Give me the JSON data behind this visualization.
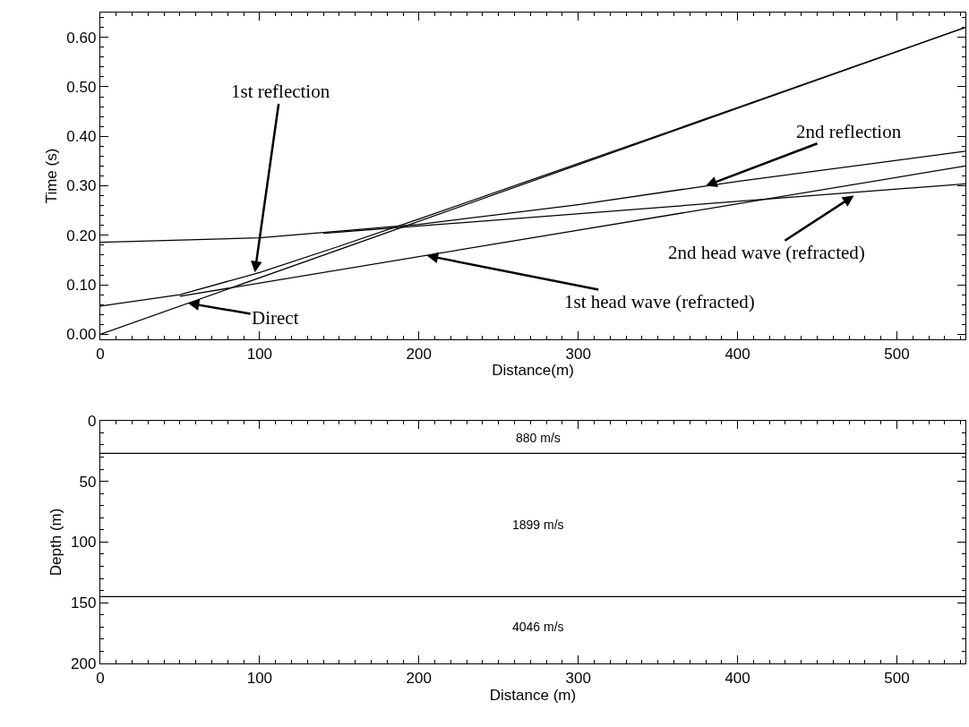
{
  "chart_data": [
    {
      "type": "line",
      "xlabel": "Distance(m)",
      "ylabel": "Time (s)",
      "xlim": [
        0,
        543
      ],
      "ylim": [
        -0.01,
        0.65
      ],
      "xticks": [
        0,
        100,
        200,
        300,
        400,
        500
      ],
      "yticks": [
        {
          "value": 0,
          "label": "0.00"
        },
        {
          "value": 0.1,
          "label": "0.10"
        },
        {
          "value": 0.2,
          "label": "0.20"
        },
        {
          "value": 0.3,
          "label": "0.30"
        },
        {
          "value": 0.4,
          "label": "0.40"
        },
        {
          "value": 0.5,
          "label": "0.50"
        },
        {
          "value": 0.6,
          "label": "0.60"
        }
      ],
      "line_style": "solid",
      "series": [
        {
          "color": "#000000",
          "x": [
            0,
            543
          ],
          "values": [
            0,
            0.62
          ]
        },
        {
          "color": "#000000",
          "x": [
            0,
            50,
            100,
            150,
            200,
            300,
            400,
            543
          ],
          "values": [
            0.057,
            0.08,
            0.125,
            0.178,
            0.233,
            0.345,
            0.458,
            0.62
          ]
        },
        {
          "color": "#000000",
          "x": [
            50,
            543
          ],
          "values": [
            0.077,
            0.34
          ]
        },
        {
          "color": "#000000",
          "x": [
            0,
            100,
            200,
            300,
            400,
            543
          ],
          "values": [
            0.186,
            0.195,
            0.222,
            0.262,
            0.309,
            0.37
          ]
        },
        {
          "color": "#000000",
          "x": [
            140,
            543
          ],
          "values": [
            0.204,
            0.304
          ]
        }
      ],
      "annotations": [
        {
          "text": "1st reflection",
          "x": 97,
          "y": 0.125
        },
        {
          "text": "Direct",
          "x": 55,
          "y": 0.063
        },
        {
          "text": "1st head wave (refracted)",
          "x": 205,
          "y": 0.159
        },
        {
          "text": "2nd reflection",
          "x": 380,
          "y": 0.3
        },
        {
          "text": "2nd head wave (refracted)",
          "x": 473,
          "y": 0.28
        }
      ]
    },
    {
      "type": "line",
      "xlabel": "Distance (m)",
      "ylabel": "Depth (m)",
      "xlim": [
        0,
        543
      ],
      "ylim": [
        200,
        0
      ],
      "xticks": [
        0,
        100,
        200,
        300,
        400,
        500
      ],
      "yticks": [
        0,
        50,
        100,
        150,
        200
      ],
      "line_style": "solid",
      "series": [
        {
          "color": "#000000",
          "x": [
            0,
            543
          ],
          "values": [
            27,
            27
          ]
        },
        {
          "color": "#000000",
          "x": [
            0,
            543
          ],
          "values": [
            145,
            145
          ]
        }
      ],
      "annotations": [
        "880 m/s",
        "1899 m/s",
        "4046 m/s"
      ]
    }
  ]
}
